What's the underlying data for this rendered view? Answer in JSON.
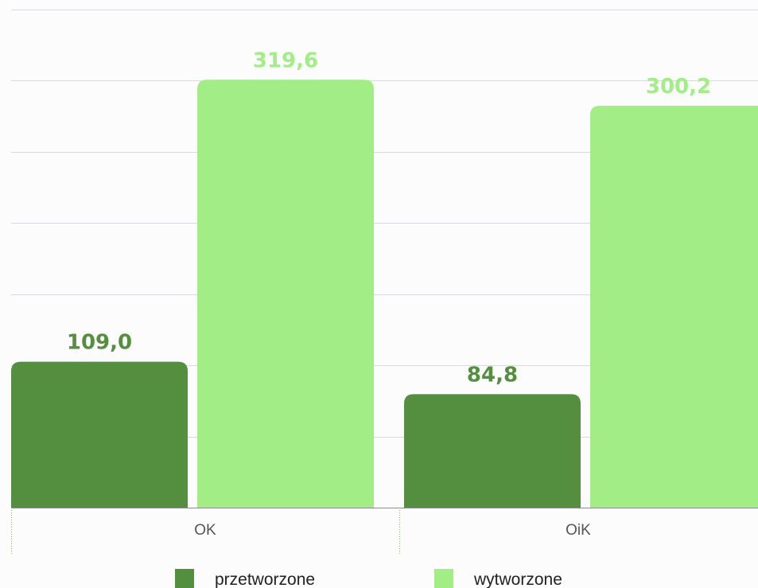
{
  "chart_data": {
    "type": "bar",
    "categories": [
      "OK",
      "OiK"
    ],
    "series": [
      {
        "name": "przetworzone",
        "values": [
          109.0,
          84.8
        ],
        "labels": [
          "109,0",
          "84,8"
        ],
        "color": "#548f3f",
        "label_color": "#548f3f"
      },
      {
        "name": "wytworzone",
        "values": [
          319.6,
          300.2
        ],
        "labels": [
          "319,6",
          "300,2"
        ],
        "color": "#a2ed86",
        "label_color": "#a2ed86"
      }
    ],
    "ylim": [
      0,
      350
    ],
    "gridlines": true,
    "legend_position": "bottom"
  }
}
